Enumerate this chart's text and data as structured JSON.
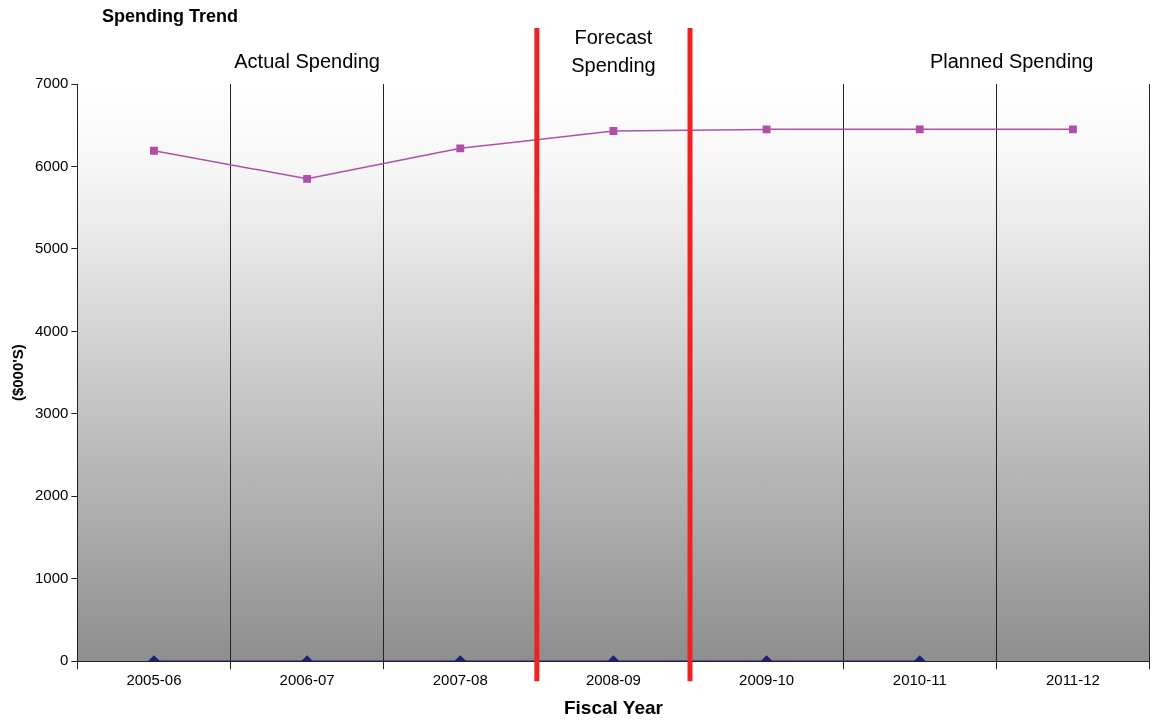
{
  "chart_data": {
    "type": "line",
    "title": "Spending Trend",
    "xlabel": "Fiscal Year",
    "ylabel": "($000'S)",
    "categories": [
      "2005-06",
      "2006-07",
      "2007-08",
      "2008-09",
      "2009-10",
      "2010-11",
      "2011-12"
    ],
    "series": [
      {
        "color": "#b04fa8",
        "marker": "square",
        "values": [
          6190,
          5850,
          6220,
          6430,
          6450,
          6450,
          6450
        ]
      },
      {
        "color": "#1f1f7a",
        "marker": "diamond",
        "values": [
          0,
          0,
          0,
          0,
          0,
          0,
          null
        ]
      }
    ],
    "ylim": [
      0,
      7000
    ],
    "yticks": [
      0,
      1000,
      2000,
      3000,
      4000,
      5000,
      6000,
      7000
    ],
    "grid": "x",
    "legend": false,
    "annotations": [
      "Actual Spending",
      "Forecast Spending",
      "Planned Spending"
    ]
  }
}
